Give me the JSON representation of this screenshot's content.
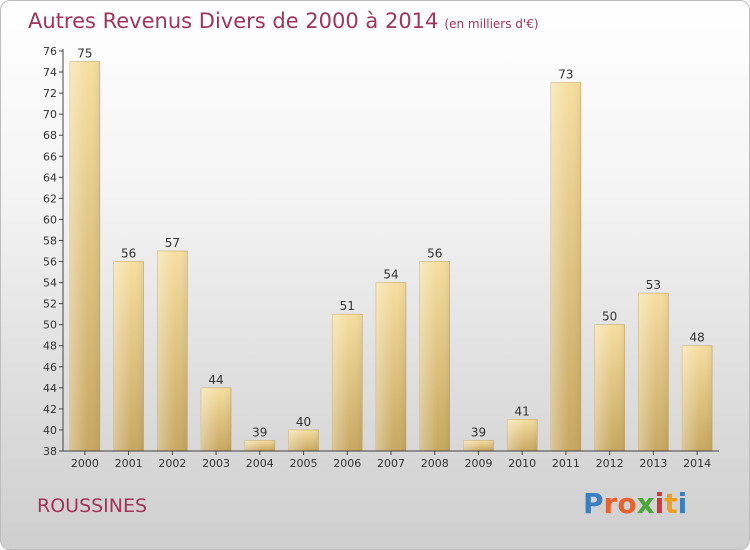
{
  "header": {
    "title": "Autres Revenus Divers de 2000 à 2014",
    "subtitle": "(en milliers d'€)"
  },
  "footer": {
    "commune": "ROUSSINES",
    "brand": "Proxiti",
    "brand_colors": [
      "#3a7fc1",
      "#e8622c",
      "#e8622c",
      "#4aa83a",
      "#d7343a",
      "#f0a020",
      "#3a7fc1"
    ]
  },
  "colors": {
    "bar_light": "#f6dfa0",
    "bar_dark": "#c8a861",
    "title": "#a3335a"
  },
  "chart_data": {
    "type": "bar",
    "categories": [
      "2000",
      "2001",
      "2002",
      "2003",
      "2004",
      "2005",
      "2006",
      "2007",
      "2008",
      "2009",
      "2010",
      "2011",
      "2012",
      "2013",
      "2014"
    ],
    "values": [
      75,
      56,
      57,
      44,
      39,
      40,
      51,
      54,
      56,
      39,
      41,
      73,
      50,
      53,
      48
    ],
    "ylim": [
      38,
      76
    ],
    "yticks": [
      38,
      40,
      42,
      44,
      46,
      48,
      50,
      52,
      54,
      56,
      58,
      60,
      62,
      64,
      66,
      68,
      70,
      72,
      74,
      76
    ],
    "grid": false,
    "legend": "none"
  }
}
